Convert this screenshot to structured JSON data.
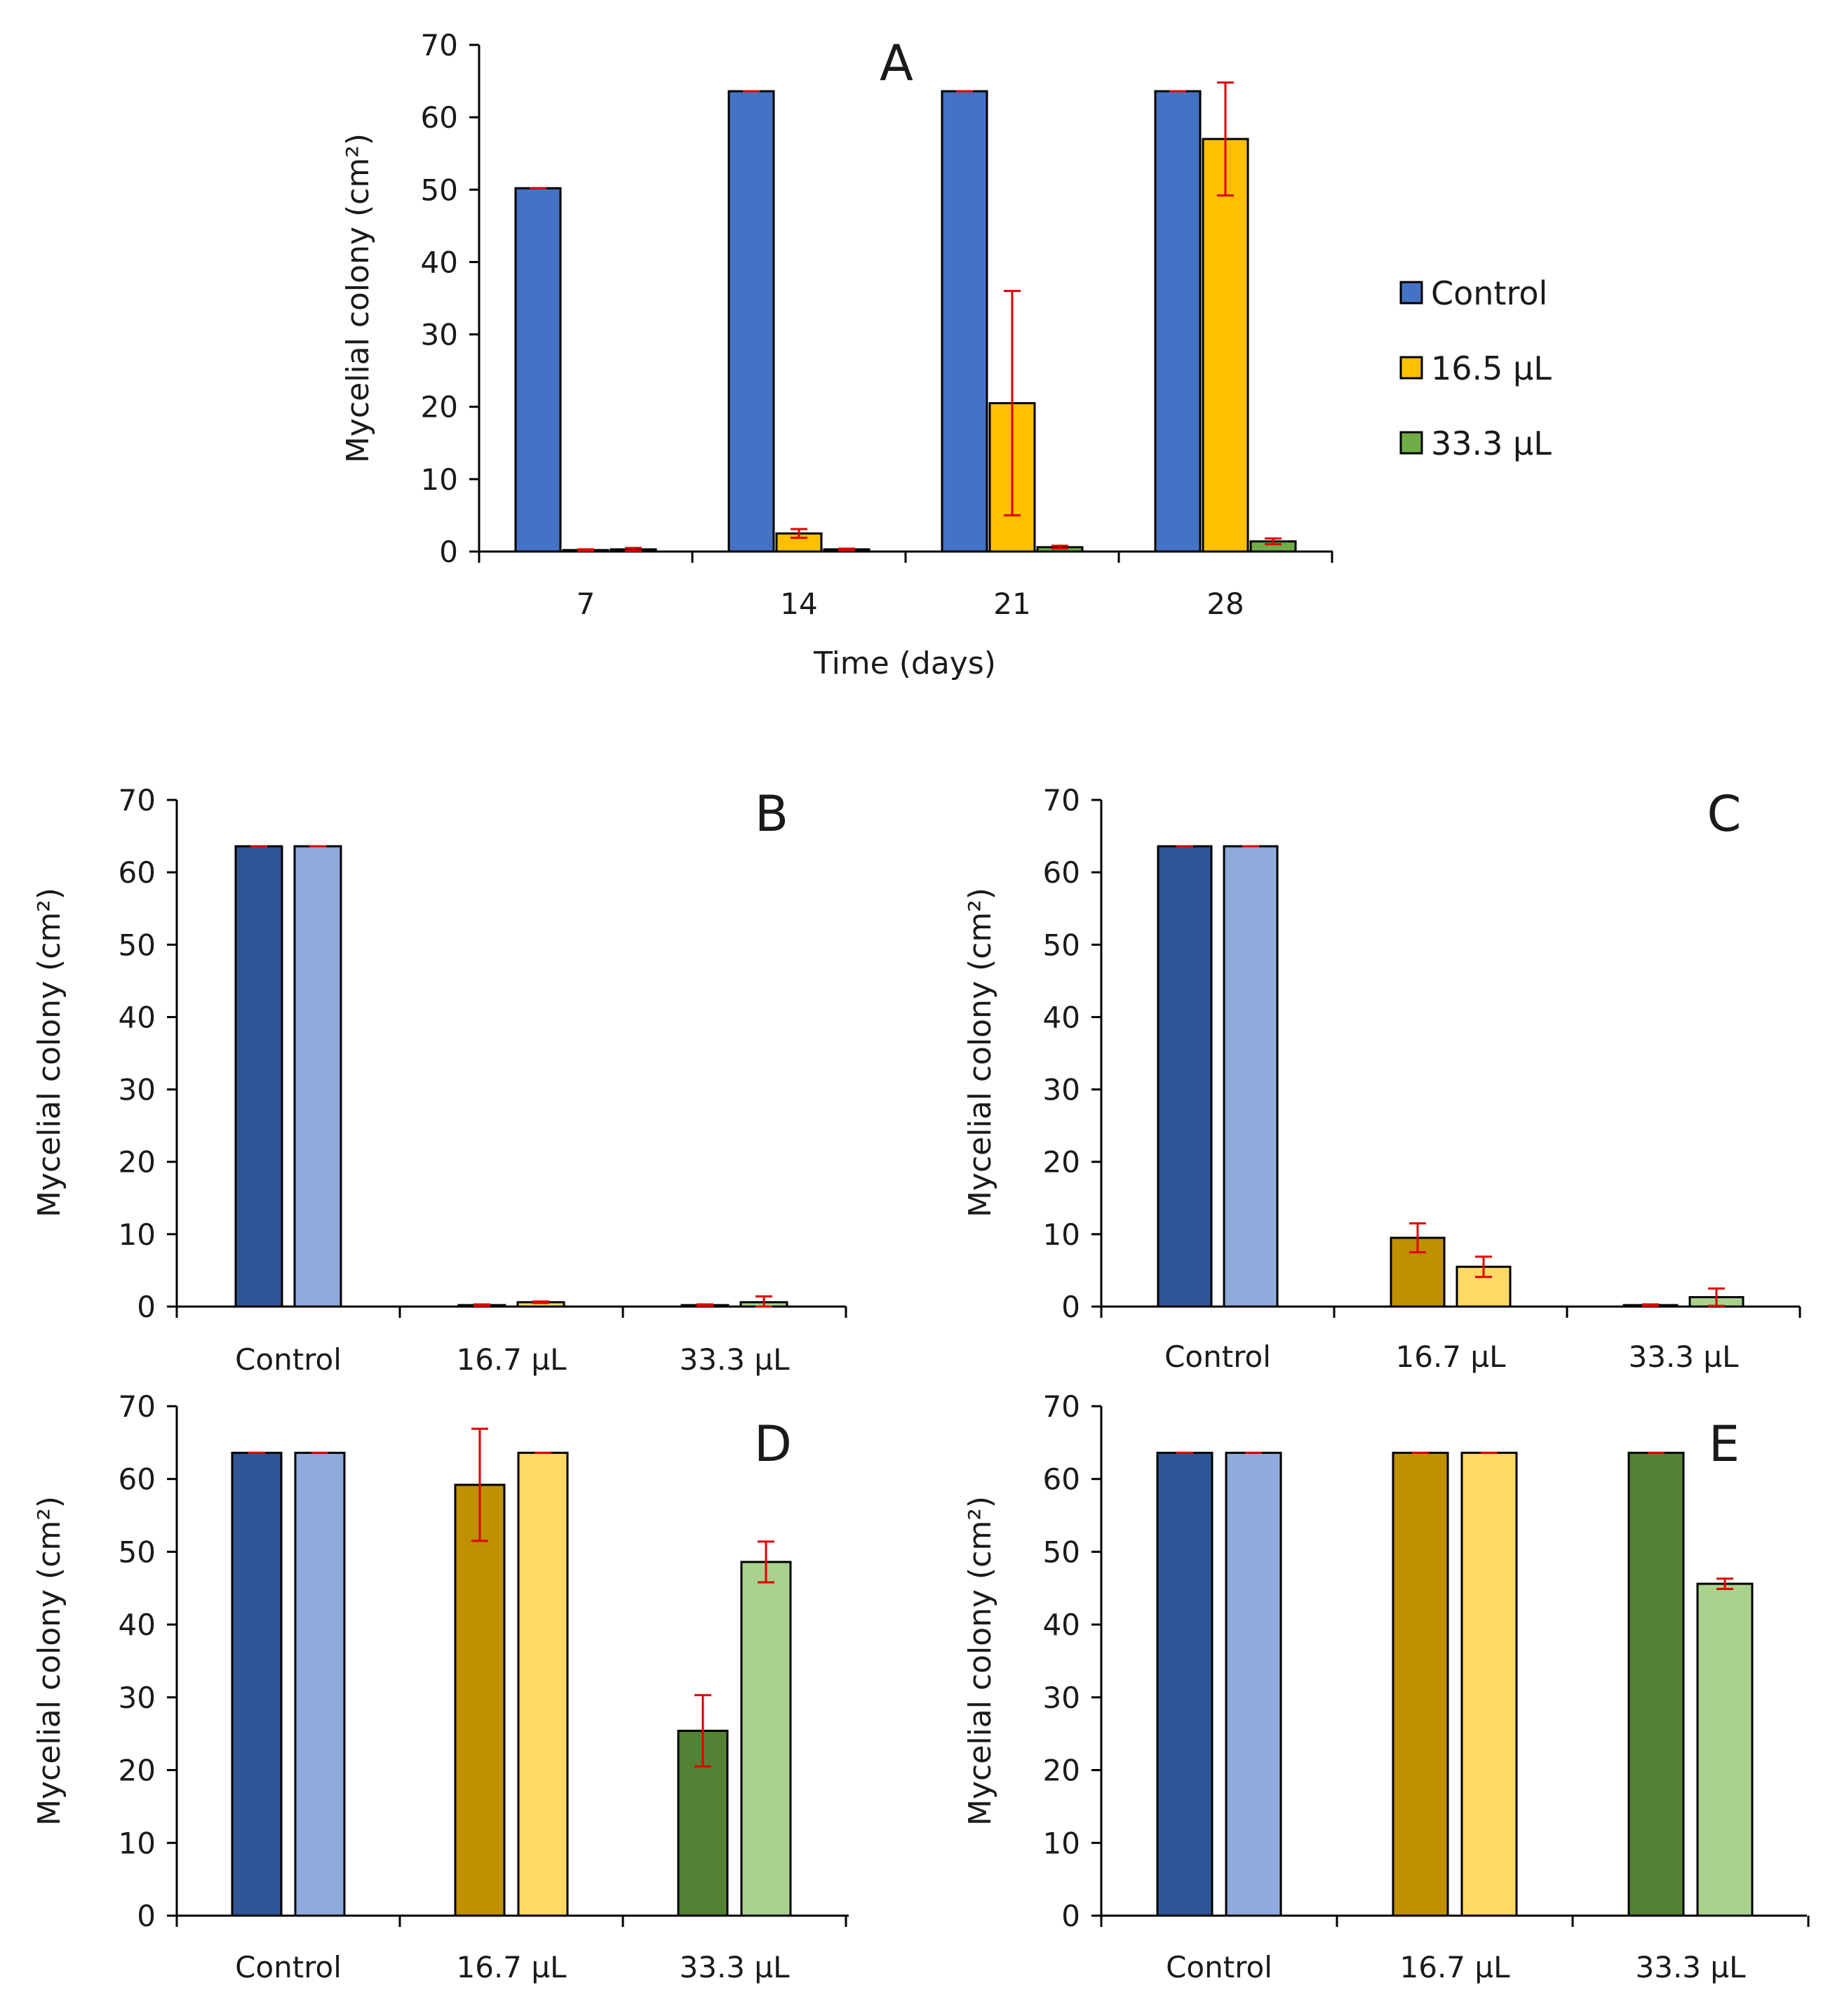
{
  "chart_data": [
    {
      "id": "A",
      "type": "bar",
      "panel_label": "A",
      "title": "",
      "xlabel": "Time (days)",
      "ylabel": "Mycelial colony (cm²)",
      "ylim": [
        0,
        70
      ],
      "yticks": [
        0,
        10,
        20,
        30,
        40,
        50,
        60,
        70
      ],
      "categories": [
        "7",
        "14",
        "21",
        "28"
      ],
      "legend_position": "right",
      "series": [
        {
          "name": "Control",
          "color": "#4472C4",
          "values": [
            50.2,
            63.6,
            63.6,
            63.6
          ],
          "errors": [
            0,
            0,
            0,
            0
          ]
        },
        {
          "name": "16.5 µL",
          "color": "#FFC000",
          "values": [
            0.2,
            2.5,
            20.5,
            57.0
          ],
          "errors": [
            0.1,
            0.6,
            15.5,
            7.8
          ]
        },
        {
          "name": "33.3 µL",
          "color": "#70AD47",
          "values": [
            0.3,
            0.3,
            0.6,
            1.4
          ],
          "errors": [
            0.2,
            0.1,
            0.2,
            0.4
          ]
        }
      ]
    },
    {
      "id": "B",
      "type": "bar",
      "panel_label": "B",
      "ylabel": "Mycelial colony (cm²)",
      "ylim": [
        0,
        70
      ],
      "yticks": [
        0,
        10,
        20,
        30,
        40,
        50,
        60,
        70
      ],
      "categories": [
        "Control",
        "16.7 µL",
        "33.3 µL"
      ],
      "bar_colors": [
        [
          "#2F5597",
          "#8FAADC"
        ],
        [
          "#BF9000",
          "#FFD966"
        ],
        [
          "#548235",
          "#A9D18E"
        ]
      ],
      "series": [
        {
          "name": "dark",
          "values": [
            63.6,
            0.2,
            0.2
          ],
          "errors": [
            0,
            0.1,
            0.1
          ]
        },
        {
          "name": "light",
          "values": [
            63.6,
            0.6,
            0.6
          ],
          "errors": [
            0,
            0.1,
            0.8
          ]
        }
      ]
    },
    {
      "id": "C",
      "type": "bar",
      "panel_label": "C",
      "ylabel": "Mycelial colony (cm²)",
      "ylim": [
        0,
        70
      ],
      "yticks": [
        0,
        10,
        20,
        30,
        40,
        50,
        60,
        70
      ],
      "categories": [
        "Control",
        "16.7 µL",
        "33.3 µL"
      ],
      "bar_colors": [
        [
          "#2F5597",
          "#8FAADC"
        ],
        [
          "#BF9000",
          "#FFD966"
        ],
        [
          "#548235",
          "#A9D18E"
        ]
      ],
      "series": [
        {
          "name": "dark",
          "values": [
            63.6,
            9.5,
            0.2
          ],
          "errors": [
            0,
            2.0,
            0.1
          ]
        },
        {
          "name": "light",
          "values": [
            63.6,
            5.5,
            1.3
          ],
          "errors": [
            0,
            1.4,
            1.2
          ]
        }
      ]
    },
    {
      "id": "D",
      "type": "bar",
      "panel_label": "D",
      "ylabel": "Mycelial colony (cm²)",
      "ylim": [
        0,
        70
      ],
      "yticks": [
        0,
        10,
        20,
        30,
        40,
        50,
        60,
        70
      ],
      "categories": [
        "Control",
        "16.7 µL",
        "33.3 µL"
      ],
      "bar_colors": [
        [
          "#2F5597",
          "#8FAADC"
        ],
        [
          "#BF9000",
          "#FFD966"
        ],
        [
          "#548235",
          "#A9D18E"
        ]
      ],
      "series": [
        {
          "name": "dark",
          "values": [
            63.6,
            59.2,
            25.4
          ],
          "errors": [
            0,
            7.7,
            4.9
          ]
        },
        {
          "name": "light",
          "values": [
            63.6,
            63.6,
            48.6
          ],
          "errors": [
            0,
            0,
            2.8
          ]
        }
      ]
    },
    {
      "id": "E",
      "type": "bar",
      "panel_label": "E",
      "ylabel": "Mycelial colony (cm²)",
      "ylim": [
        0,
        70
      ],
      "yticks": [
        0,
        10,
        20,
        30,
        40,
        50,
        60,
        70
      ],
      "categories": [
        "Control",
        "16.7 µL",
        "33.3 µL"
      ],
      "bar_colors": [
        [
          "#2F5597",
          "#8FAADC"
        ],
        [
          "#BF9000",
          "#FFD966"
        ],
        [
          "#548235",
          "#A9D18E"
        ]
      ],
      "series": [
        {
          "name": "dark",
          "values": [
            63.6,
            63.6,
            63.6
          ],
          "errors": [
            0,
            0,
            0
          ]
        },
        {
          "name": "light",
          "values": [
            63.6,
            63.6,
            45.6
          ],
          "errors": [
            0,
            0,
            0.7
          ]
        }
      ]
    }
  ],
  "style": {
    "error_bar_color": "#E00000",
    "axis_color": "#000000",
    "bar_outline_color": "#000000"
  }
}
